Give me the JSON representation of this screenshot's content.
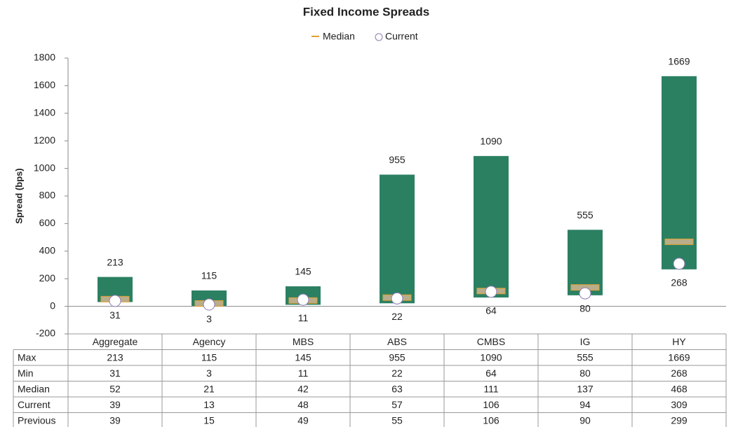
{
  "chart_data": {
    "type": "range_bar",
    "title": "Fixed Income Spreads",
    "y_label": "Spread (bps)",
    "categories": [
      "Aggregate",
      "Agency",
      "MBS",
      "ABS",
      "CMBS",
      "IG",
      "HY"
    ],
    "series": [
      {
        "name": "Max",
        "color": "#2b8062",
        "values": [
          213,
          115,
          145,
          955,
          1090,
          555,
          1669
        ]
      },
      {
        "name": "Min",
        "color": "#2b8062",
        "values": [
          31,
          3,
          11,
          22,
          64,
          80,
          268
        ]
      },
      {
        "name": "Median",
        "color": "#e0a030",
        "values": [
          52,
          21,
          42,
          63,
          111,
          137,
          468
        ]
      },
      {
        "name": "Current",
        "color": "#8e7bb5",
        "values": [
          39,
          13,
          48,
          57,
          106,
          94,
          309
        ]
      },
      {
        "name": "Previous",
        "values": [
          39,
          15,
          49,
          55,
          106,
          90,
          299
        ]
      }
    ],
    "ylim": [
      -200,
      1800
    ],
    "yticks": [
      -200,
      0,
      200,
      400,
      600,
      800,
      1000,
      1200,
      1400,
      1600,
      1800
    ],
    "legend": "top"
  }
}
